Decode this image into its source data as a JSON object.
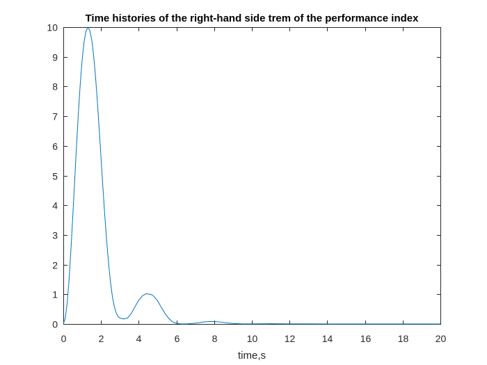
{
  "chart_data": {
    "type": "line",
    "title": "Time histories of the right-hand side trem of the performance index",
    "xlabel": "time,s",
    "ylabel": "",
    "xlim": [
      0,
      20
    ],
    "ylim": [
      0,
      10
    ],
    "xticks": [
      0,
      2,
      4,
      6,
      8,
      10,
      12,
      14,
      16,
      18,
      20
    ],
    "yticks": [
      0,
      1,
      2,
      3,
      4,
      5,
      6,
      7,
      8,
      9,
      10
    ],
    "grid": false,
    "legend": "none",
    "series": [
      {
        "color": "#0072BD",
        "x": [
          0,
          0.1,
          0.2,
          0.3,
          0.4,
          0.5,
          0.6,
          0.7,
          0.8,
          0.9,
          1.0,
          1.1,
          1.2,
          1.3,
          1.4,
          1.5,
          1.6,
          1.7,
          1.8,
          1.9,
          2.0,
          2.1,
          2.2,
          2.3,
          2.4,
          2.5,
          2.6,
          2.7,
          2.8,
          2.9,
          3.0,
          3.2,
          3.4,
          3.6,
          3.8,
          4.0,
          4.2,
          4.4,
          4.6,
          4.7,
          4.8,
          5.0,
          5.2,
          5.4,
          5.6,
          5.8,
          6.0,
          6.3,
          6.6,
          6.9,
          7.2,
          7.5,
          7.8,
          8.1,
          8.4,
          8.7,
          9.0,
          9.5,
          10.0,
          10.5,
          11.0,
          12.0,
          13.0,
          14.0,
          16.0,
          18.0,
          20.0
        ],
        "y": [
          0,
          0.18,
          0.68,
          1.45,
          2.45,
          3.6,
          4.8,
          6.0,
          7.1,
          8.1,
          8.9,
          9.5,
          9.85,
          10.0,
          9.9,
          9.6,
          9.1,
          8.4,
          7.55,
          6.6,
          5.6,
          4.6,
          3.65,
          2.8,
          2.05,
          1.42,
          0.94,
          0.6,
          0.38,
          0.25,
          0.2,
          0.17,
          0.2,
          0.35,
          0.58,
          0.8,
          0.95,
          1.02,
          1.0,
          0.98,
          0.93,
          0.78,
          0.56,
          0.35,
          0.18,
          0.07,
          0.02,
          0.0,
          0.005,
          0.02,
          0.045,
          0.07,
          0.085,
          0.08,
          0.06,
          0.035,
          0.015,
          0.004,
          0.002,
          0.005,
          0.008,
          0.004,
          0.002,
          0.001,
          0.0,
          0.0,
          0.0
        ]
      }
    ]
  }
}
